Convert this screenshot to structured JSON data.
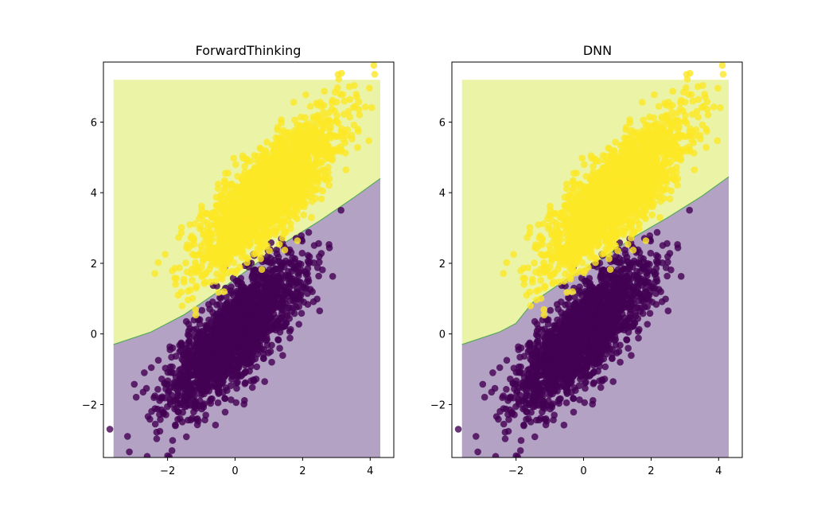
{
  "chart_data": [
    {
      "type": "scatter",
      "title": "ForwardThinking",
      "xlabel": "",
      "ylabel": "",
      "xlim": [
        -3.9,
        4.7
      ],
      "ylim": [
        -3.5,
        7.7
      ],
      "xticks": [
        -2,
        0,
        2,
        4
      ],
      "yticks": [
        -2,
        0,
        2,
        4,
        6
      ],
      "xtick_labels": [
        "−2",
        "0",
        "2",
        "4"
      ],
      "ytick_labels": [
        "−2",
        "0",
        "2",
        "4",
        "6"
      ],
      "region_extent": {
        "x": [
          -3.6,
          4.3
        ],
        "y": [
          -3.5,
          7.2
        ]
      },
      "decision_boundary": [
        [
          -3.6,
          -0.3
        ],
        [
          -2.5,
          0.05
        ],
        [
          -1.5,
          0.55
        ],
        [
          -0.5,
          1.2
        ],
        [
          0.5,
          1.9
        ],
        [
          1.5,
          2.6
        ],
        [
          2.5,
          3.2
        ],
        [
          3.5,
          3.85
        ],
        [
          4.3,
          4.4
        ]
      ],
      "series": [
        {
          "class": 0,
          "color": "#440154",
          "center": [
            0.0,
            0.0
          ],
          "spread": [
            1.0,
            1.05
          ],
          "correlation": 0.78,
          "count": 2000
        },
        {
          "class": 1,
          "color": "#fde725",
          "center": [
            1.0,
            4.0
          ],
          "spread": [
            1.0,
            1.05
          ],
          "correlation": 0.78,
          "count": 2000
        }
      ],
      "region_colors": {
        "class_0": "#b3a2c4",
        "class_1": "#ebf3a6",
        "boundary": "#5aab5a"
      },
      "grid": false,
      "legend": "none"
    },
    {
      "type": "scatter",
      "title": "DNN",
      "xlabel": "",
      "ylabel": "",
      "xlim": [
        -3.9,
        4.7
      ],
      "ylim": [
        -3.5,
        7.7
      ],
      "xticks": [
        -2,
        0,
        2,
        4
      ],
      "yticks": [
        -2,
        0,
        2,
        4,
        6
      ],
      "xtick_labels": [
        "−2",
        "0",
        "2",
        "4"
      ],
      "ytick_labels": [
        "−2",
        "0",
        "2",
        "4",
        "6"
      ],
      "region_extent": {
        "x": [
          -3.6,
          4.3
        ],
        "y": [
          -3.5,
          7.2
        ]
      },
      "decision_boundary": [
        [
          -3.6,
          -0.3
        ],
        [
          -2.5,
          0.05
        ],
        [
          -2.0,
          0.3
        ],
        [
          -1.5,
          0.9
        ],
        [
          -0.5,
          1.55
        ],
        [
          0.5,
          2.1
        ],
        [
          1.5,
          2.75
        ],
        [
          2.5,
          3.3
        ],
        [
          3.5,
          3.9
        ],
        [
          4.3,
          4.45
        ]
      ],
      "series": [
        {
          "class": 0,
          "color": "#440154",
          "center": [
            0.0,
            0.0
          ],
          "spread": [
            1.0,
            1.05
          ],
          "correlation": 0.78,
          "count": 2000
        },
        {
          "class": 1,
          "color": "#fde725",
          "center": [
            1.0,
            4.0
          ],
          "spread": [
            1.0,
            1.05
          ],
          "correlation": 0.78,
          "count": 2000
        }
      ],
      "region_colors": {
        "class_0": "#b3a2c4",
        "class_1": "#ebf3a6",
        "boundary": "#5aab5a"
      },
      "grid": false,
      "legend": "none"
    }
  ]
}
